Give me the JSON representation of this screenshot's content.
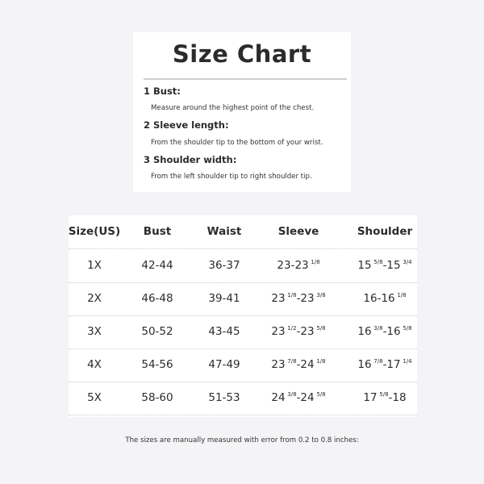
{
  "card": {
    "title": "Size Chart",
    "items": [
      {
        "heading": "1 Bust:",
        "desc": "Measure around the highest point of the chest."
      },
      {
        "heading": "2 Sleeve length:",
        "desc": "From the shoulder tip to the bottom of your wrist."
      },
      {
        "heading": "3 Shoulder width:",
        "desc": "From the left shoulder tip to right shoulder tip."
      }
    ]
  },
  "table": {
    "headers": [
      "Size(US)",
      "Bust",
      "Waist",
      "Sleeve",
      "Shoulder"
    ],
    "rows": [
      [
        [
          {
            "t": "1X"
          }
        ],
        [
          {
            "t": "42-44"
          }
        ],
        [
          {
            "t": "36-37"
          }
        ],
        [
          {
            "t": "23-23"
          },
          {
            "s": "1/8"
          }
        ],
        [
          {
            "t": "15"
          },
          {
            "s": "5/8"
          },
          {
            "t": "-15"
          },
          {
            "s": "3/4"
          }
        ]
      ],
      [
        [
          {
            "t": "2X"
          }
        ],
        [
          {
            "t": "46-48"
          }
        ],
        [
          {
            "t": "39-41"
          }
        ],
        [
          {
            "t": "23"
          },
          {
            "s": "1/8"
          },
          {
            "t": "-23"
          },
          {
            "s": "3/8"
          }
        ],
        [
          {
            "t": "16-16"
          },
          {
            "s": "1/8"
          }
        ]
      ],
      [
        [
          {
            "t": "3X"
          }
        ],
        [
          {
            "t": "50-52"
          }
        ],
        [
          {
            "t": "43-45"
          }
        ],
        [
          {
            "t": "23"
          },
          {
            "s": "1/2"
          },
          {
            "t": "-23"
          },
          {
            "s": "5/8"
          }
        ],
        [
          {
            "t": "16"
          },
          {
            "s": "3/8"
          },
          {
            "t": "-16"
          },
          {
            "s": "5/8"
          }
        ]
      ],
      [
        [
          {
            "t": "4X"
          }
        ],
        [
          {
            "t": "54-56"
          }
        ],
        [
          {
            "t": "47-49"
          }
        ],
        [
          {
            "t": "23"
          },
          {
            "s": "7/8"
          },
          {
            "t": "-24"
          },
          {
            "s": "1/8"
          }
        ],
        [
          {
            "t": "16"
          },
          {
            "s": "7/8"
          },
          {
            "t": "-17"
          },
          {
            "s": "1/4"
          }
        ]
      ],
      [
        [
          {
            "t": "5X"
          }
        ],
        [
          {
            "t": "58-60"
          }
        ],
        [
          {
            "t": "51-53"
          }
        ],
        [
          {
            "t": "24"
          },
          {
            "s": "3/8"
          },
          {
            "t": "-24"
          },
          {
            "s": "5/8"
          }
        ],
        [
          {
            "t": "17"
          },
          {
            "s": "5/8"
          },
          {
            "t": "-18"
          }
        ]
      ]
    ]
  },
  "footer": "The sizes are manually measured with error from 0.2 to 0.8 inches:"
}
